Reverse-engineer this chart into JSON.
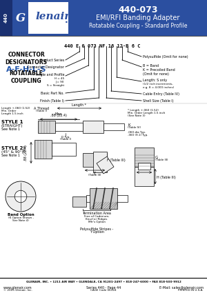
{
  "title_number": "440-073",
  "title_line1": "EMI/RFI Banding Adapter",
  "title_line2": "Rotatable Coupling - Standard Profile",
  "series_label": "440",
  "part_number_example": "440 E 0 073 NF 16 12-B 6 C",
  "footer_line1": "GLENAIR, INC. • 1211 AIR WAY • GLENDALE, CA 91201-2497 • 818-247-6000 • FAX 818-500-9912",
  "footer_line2": "www.glenair.com",
  "footer_line3": "Series 440 - Page 44",
  "footer_line4": "E-Mail: sales@glenair.com",
  "footer_line5": "© 2005 Glenair, Inc.",
  "footer_line6": "CAGE Code 06324",
  "footer_line7": "PRINTED IN U.S.A.",
  "header_bg": "#2b4fa0",
  "header_text_color": "#ffffff",
  "accent_blue": "#2b4fa0",
  "designator_color": "#2255aa",
  "body_bg": "#ffffff",
  "gray_fill": "#d8d8d8",
  "light_gray": "#eeeeee",
  "dark_gray": "#888888"
}
